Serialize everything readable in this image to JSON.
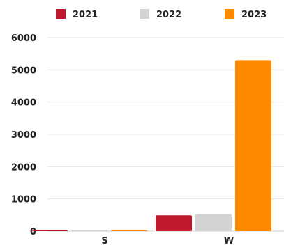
{
  "chart_data": {
    "type": "bar",
    "categories": [
      "S",
      "W"
    ],
    "series": [
      {
        "name": "2021",
        "values": [
          15,
          490
        ],
        "color": "#c0192d"
      },
      {
        "name": "2022",
        "values": [
          10,
          530
        ],
        "color": "#d3d3d3"
      },
      {
        "name": "2023",
        "values": [
          25,
          5300
        ],
        "color": "#ff8a00"
      }
    ],
    "ylim": [
      0,
      6000
    ],
    "yticks": [
      "0",
      "1000",
      "2000",
      "3000",
      "4000",
      "5000",
      "6000"
    ],
    "grid": true,
    "legend": "top"
  }
}
